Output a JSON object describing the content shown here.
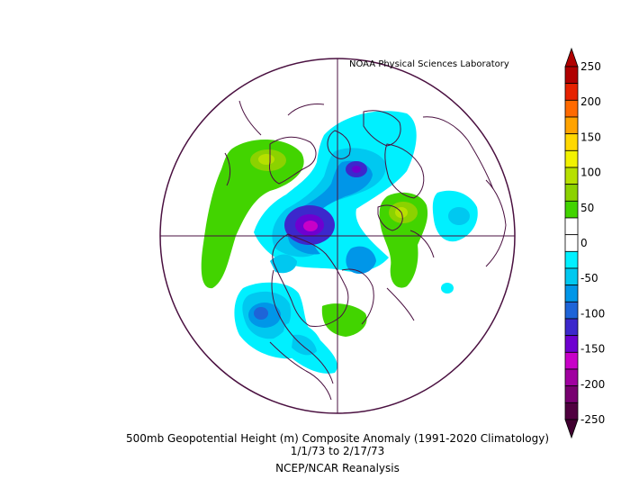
{
  "header": {
    "credit": "NOAA Physical Sciences Laboratory"
  },
  "caption": {
    "line1": "500mb Geopotential Height (m) Composite Anomaly (1991-2020 Climatology)",
    "line2": "1/1/73  to 2/17/73",
    "line3": "NCEP/NCAR Reanalysis"
  },
  "colorbar": {
    "labels": [
      "250",
      "200",
      "150",
      "100",
      "50",
      "0",
      "-50",
      "-100",
      "-150",
      "-200",
      "-250"
    ],
    "bins": [
      {
        "color": "#b00000"
      },
      {
        "color": "#e62200"
      },
      {
        "color": "#ff6a00"
      },
      {
        "color": "#ffa300"
      },
      {
        "color": "#ffd800"
      },
      {
        "color": "#f2f200"
      },
      {
        "color": "#b7e000"
      },
      {
        "color": "#8cd200"
      },
      {
        "color": "#42d400"
      },
      {
        "color": "#ffffff"
      },
      {
        "color": "#ffffff"
      },
      {
        "color": "#00f0ff"
      },
      {
        "color": "#00c8f0"
      },
      {
        "color": "#0096e8"
      },
      {
        "color": "#1e64d8"
      },
      {
        "color": "#3c28cc"
      },
      {
        "color": "#6e00d0"
      },
      {
        "color": "#c800c8"
      },
      {
        "color": "#a000a0"
      },
      {
        "color": "#780070"
      },
      {
        "color": "#500040"
      }
    ],
    "top_triangle_color": "#b00000",
    "bottom_triangle_color": "#400030"
  },
  "map": {
    "projection": "polar stereographic (north)",
    "outline_color": "#4a1040",
    "anomalies": [
      {
        "sign": "negative",
        "level": "-150"
      },
      {
        "sign": "negative",
        "level": "-100"
      },
      {
        "sign": "positive",
        "level": "100"
      }
    ]
  }
}
